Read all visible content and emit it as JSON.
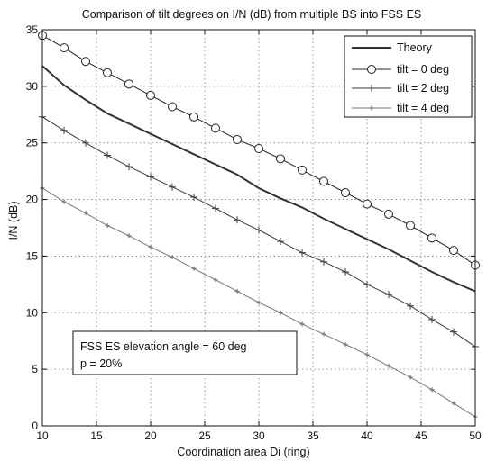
{
  "chart_data": {
    "type": "line",
    "title": "Comparison of tilt degrees on I/N (dB) from multiple BS into FSS ES",
    "xlabel": "Coordination area Di (ring)",
    "ylabel": "I/N (dB)",
    "xlim": [
      10,
      50
    ],
    "ylim": [
      0,
      35
    ],
    "xticks": [
      10,
      15,
      20,
      25,
      30,
      35,
      40,
      45,
      50
    ],
    "yticks": [
      0,
      5,
      10,
      15,
      20,
      25,
      30,
      35
    ],
    "grid": true,
    "legend_position": "top-right",
    "x": [
      10,
      12,
      14,
      16,
      18,
      20,
      22,
      24,
      26,
      28,
      30,
      32,
      34,
      36,
      38,
      40,
      42,
      44,
      46,
      48,
      50
    ],
    "series": [
      {
        "name": "Theory",
        "marker": "none",
        "color": "#333333",
        "values": [
          31.8,
          30.1,
          28.8,
          27.6,
          26.7,
          25.8,
          24.9,
          24.0,
          23.1,
          22.2,
          21.0,
          20.1,
          19.3,
          18.3,
          17.4,
          16.5,
          15.6,
          14.6,
          13.6,
          12.7,
          11.9
        ]
      },
      {
        "name": "tilt = 0 deg",
        "marker": "circle",
        "color": "#222222",
        "values": [
          34.5,
          33.4,
          32.2,
          31.2,
          30.2,
          29.2,
          28.2,
          27.3,
          26.3,
          25.3,
          24.5,
          23.6,
          22.6,
          21.6,
          20.6,
          19.6,
          18.7,
          17.7,
          16.6,
          15.5,
          14.2
        ]
      },
      {
        "name": "tilt = 2 deg",
        "marker": "plus",
        "color": "#3a3a3a",
        "values": [
          27.3,
          26.1,
          25.0,
          23.9,
          22.9,
          22.0,
          21.1,
          20.2,
          19.2,
          18.2,
          17.3,
          16.3,
          15.3,
          14.5,
          13.6,
          12.5,
          11.6,
          10.6,
          9.4,
          8.3,
          7.0
        ]
      },
      {
        "name": "tilt = 4 deg",
        "marker": "dot",
        "color": "#777777",
        "values": [
          21.0,
          19.8,
          18.8,
          17.7,
          16.8,
          15.8,
          14.9,
          13.9,
          12.9,
          11.9,
          10.9,
          10.0,
          9.0,
          8.1,
          7.2,
          6.3,
          5.3,
          4.3,
          3.2,
          2.0,
          0.8
        ]
      }
    ],
    "annotation_lines": [
      "FSS ES elevation angle = 60 deg",
      "p = 20%"
    ]
  }
}
